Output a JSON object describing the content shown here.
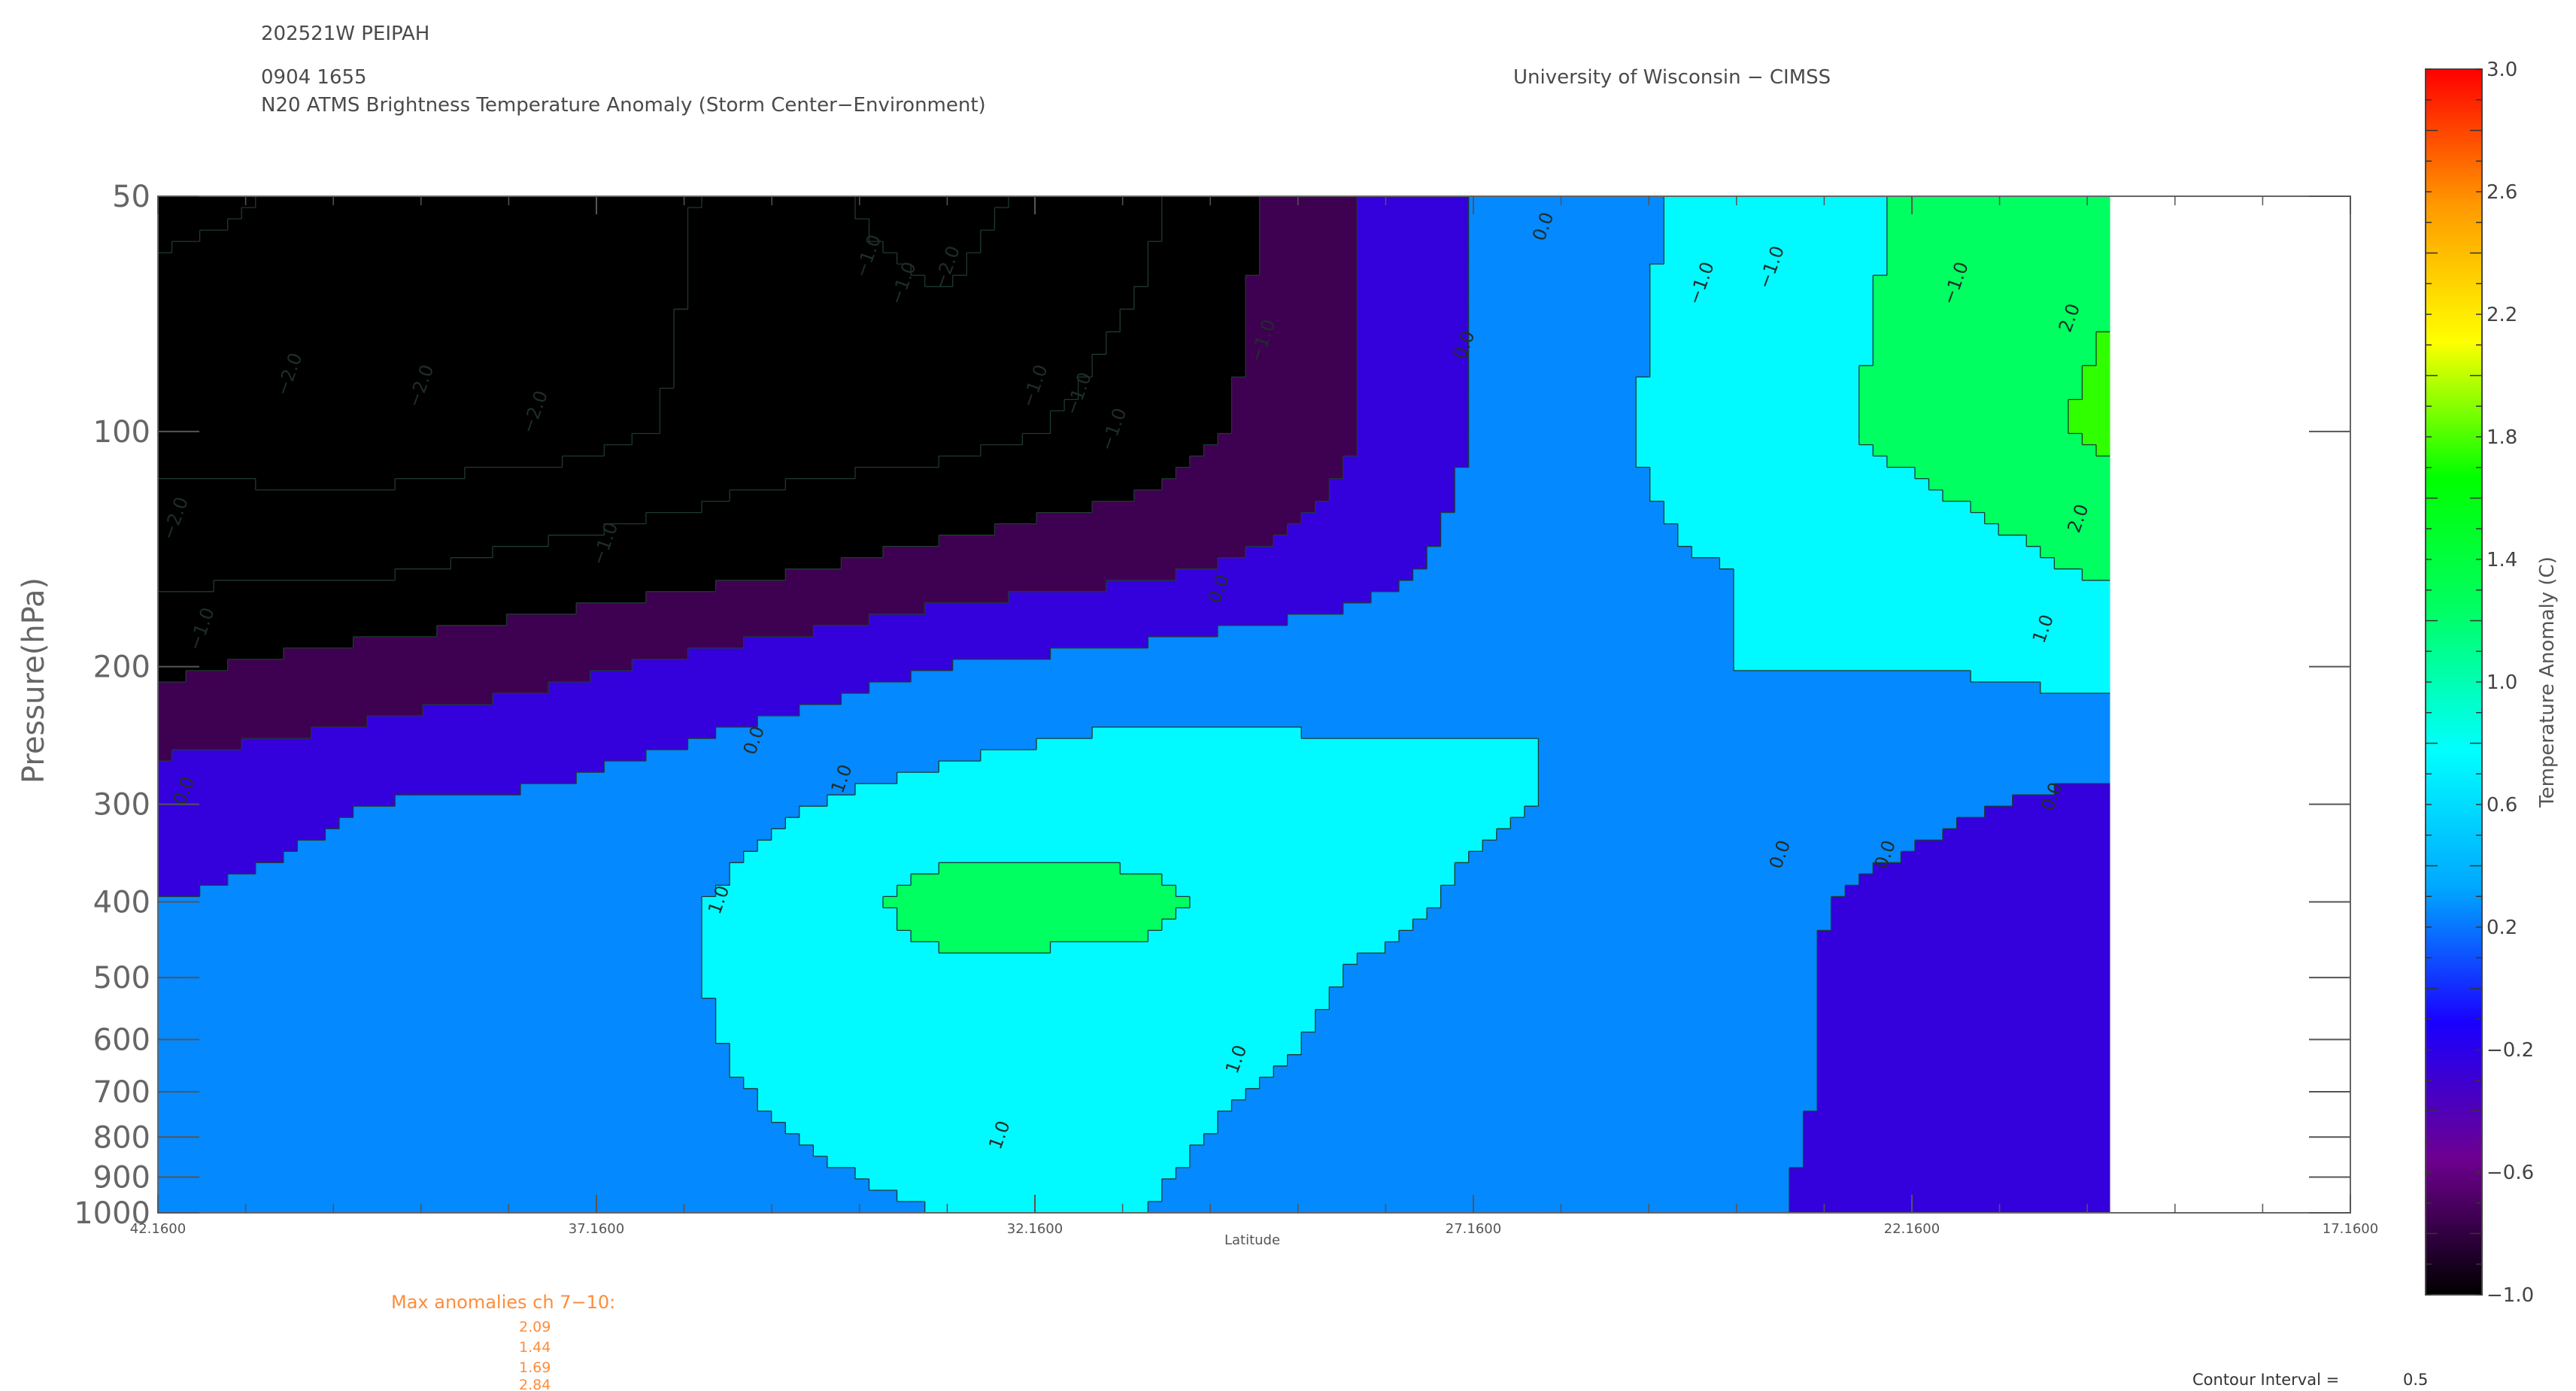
{
  "header": {
    "storm_id": "202521W PEIPAH",
    "datetime": "0904 1655",
    "product": "N20 ATMS Brightness Temperature Anomaly (Storm Center−Environment)",
    "institution": "University of Wisconsin − CIMSS"
  },
  "chart_data": {
    "type": "heatmap",
    "ylabel": "Pressure(hPa)",
    "xlabel": "Latitude",
    "x_ticks": [
      "42.1600",
      "37.1600",
      "32.1600",
      "27.1600",
      "22.1600",
      "17.1600"
    ],
    "x_tick_values": [
      42.16,
      37.16,
      32.16,
      27.16,
      22.16,
      17.16
    ],
    "xlim": [
      42.16,
      17.16
    ],
    "data_extent_lat": [
      42.16,
      19.9
    ],
    "y_ticks": [
      "50",
      "100",
      "200",
      "300",
      "400",
      "500",
      "600",
      "700",
      "800",
      "900",
      "1000"
    ],
    "y_tick_values": [
      50,
      100,
      200,
      300,
      400,
      500,
      600,
      700,
      800,
      900,
      1000
    ],
    "ylim": [
      1000,
      50
    ],
    "y_scale": "log",
    "pressure_levels": [
      50,
      100,
      150,
      200,
      250,
      300,
      400,
      500,
      700,
      1000
    ],
    "latitudes": [
      42.16,
      39.9,
      37.6,
      35.4,
      33.2,
      30.9,
      28.7,
      26.4,
      24.2,
      21.9,
      19.9
    ],
    "anomaly": [
      [
        -2.6,
        -2.4,
        -2.5,
        -1.8,
        -2.2,
        -1.6,
        -0.6,
        0.3,
        0.6,
        1.1,
        1.4
      ],
      [
        -2.2,
        -2.3,
        -2.2,
        -1.8,
        -1.7,
        -1.3,
        -0.6,
        0.3,
        0.7,
        1.2,
        1.6
      ],
      [
        -1.6,
        -1.6,
        -1.3,
        -1.1,
        -0.8,
        -0.6,
        -0.3,
        0.4,
        0.5,
        0.7,
        1.1
      ],
      [
        -1.1,
        -0.8,
        -0.6,
        -0.3,
        0.0,
        0.2,
        0.4,
        0.4,
        0.5,
        0.5,
        0.6
      ],
      [
        -0.6,
        -0.4,
        -0.2,
        0.1,
        0.4,
        0.6,
        0.5,
        0.5,
        0.5,
        0.4,
        0.3
      ],
      [
        -0.2,
        0.0,
        0.1,
        0.4,
        0.7,
        0.8,
        0.6,
        0.5,
        0.3,
        0.1,
        -0.2
      ],
      [
        0.0,
        0.1,
        0.2,
        0.6,
        1.2,
        1.1,
        0.6,
        0.4,
        0.2,
        -0.2,
        -0.3
      ],
      [
        0.0,
        0.1,
        0.2,
        0.6,
        0.9,
        0.9,
        0.5,
        0.3,
        0.2,
        -0.3,
        -0.3
      ],
      [
        0.0,
        0.1,
        0.3,
        0.5,
        0.7,
        0.6,
        0.4,
        0.3,
        0.2,
        -0.3,
        -0.3
      ],
      [
        0.0,
        0.0,
        0.2,
        0.4,
        0.5,
        0.5,
        0.3,
        0.2,
        0.1,
        -0.3,
        -0.3
      ]
    ],
    "contour_labels": [
      {
        "text": "−2.0",
        "lat": 40.6,
        "p": 85
      },
      {
        "text": "−2.0",
        "lat": 39.1,
        "p": 88
      },
      {
        "text": "−2.0",
        "lat": 37.8,
        "p": 95
      },
      {
        "text": "−2.0",
        "lat": 41.9,
        "p": 130
      },
      {
        "text": "−1.0",
        "lat": 37.0,
        "p": 140
      },
      {
        "text": "−1.0",
        "lat": 41.6,
        "p": 180
      },
      {
        "text": "−1.0",
        "lat": 34.0,
        "p": 60
      },
      {
        "text": "−1.0",
        "lat": 33.6,
        "p": 65
      },
      {
        "text": "−2.0",
        "lat": 33.1,
        "p": 62
      },
      {
        "text": "−1.0",
        "lat": 32.1,
        "p": 88
      },
      {
        "text": "−1.0",
        "lat": 31.6,
        "p": 90
      },
      {
        "text": "−1.0",
        "lat": 31.2,
        "p": 100
      },
      {
        "text": "−1.0",
        "lat": 29.5,
        "p": 77
      },
      {
        "text": "0.0",
        "lat": 30.0,
        "p": 160
      },
      {
        "text": "0.0",
        "lat": 35.3,
        "p": 250
      },
      {
        "text": "0.0",
        "lat": 41.8,
        "p": 290
      },
      {
        "text": "0.0",
        "lat": 27.2,
        "p": 78
      },
      {
        "text": "0.0",
        "lat": 26.3,
        "p": 55
      },
      {
        "text": "1.0",
        "lat": 34.3,
        "p": 280
      },
      {
        "text": "1.0",
        "lat": 35.7,
        "p": 400
      },
      {
        "text": "1.0",
        "lat": 29.8,
        "p": 640
      },
      {
        "text": "1.0",
        "lat": 32.5,
        "p": 800
      },
      {
        "text": "−1.0",
        "lat": 24.5,
        "p": 65
      },
      {
        "text": "−1.0",
        "lat": 23.7,
        "p": 62
      },
      {
        "text": "−1.0",
        "lat": 21.6,
        "p": 65
      },
      {
        "text": "2.0",
        "lat": 20.3,
        "p": 72
      },
      {
        "text": "2.0",
        "lat": 20.2,
        "p": 130
      },
      {
        "text": "1.0",
        "lat": 20.6,
        "p": 180
      },
      {
        "text": "0.0",
        "lat": 23.6,
        "p": 350
      },
      {
        "text": "0.0",
        "lat": 22.4,
        "p": 350
      },
      {
        "text": "0.0",
        "lat": 20.5,
        "p": 295
      }
    ],
    "colorbar": {
      "title": "Temperature Anomaly (C)",
      "ticks": [
        "3.0",
        "2.6",
        "2.2",
        "1.8",
        "1.4",
        "1.0",
        "0.6",
        "0.2",
        "−0.2",
        "−0.6",
        "−1.0"
      ],
      "tick_values": [
        3.0,
        2.6,
        2.2,
        1.8,
        1.4,
        1.0,
        0.6,
        0.2,
        -0.2,
        -0.6,
        -1.0
      ],
      "range": [
        -1.0,
        3.0
      ],
      "colors": [
        "#000000",
        "#6e0090",
        "#1a00ff",
        "#00a8ff",
        "#00ffff",
        "#00ff66",
        "#00ff00",
        "#ffff00",
        "#ff9900",
        "#ff0000"
      ]
    },
    "grid": false
  },
  "max_anomalies": {
    "title": "Max anomalies ch 7−10:",
    "values": [
      "2.09",
      "1.44",
      "1.69",
      "2.84"
    ]
  },
  "contour_interval": {
    "label": "Contour Interval =",
    "value": "0.5"
  },
  "colors": {
    "axis": "#555555",
    "annotation": "#ff8c3a",
    "text": "#4a4a4a"
  }
}
